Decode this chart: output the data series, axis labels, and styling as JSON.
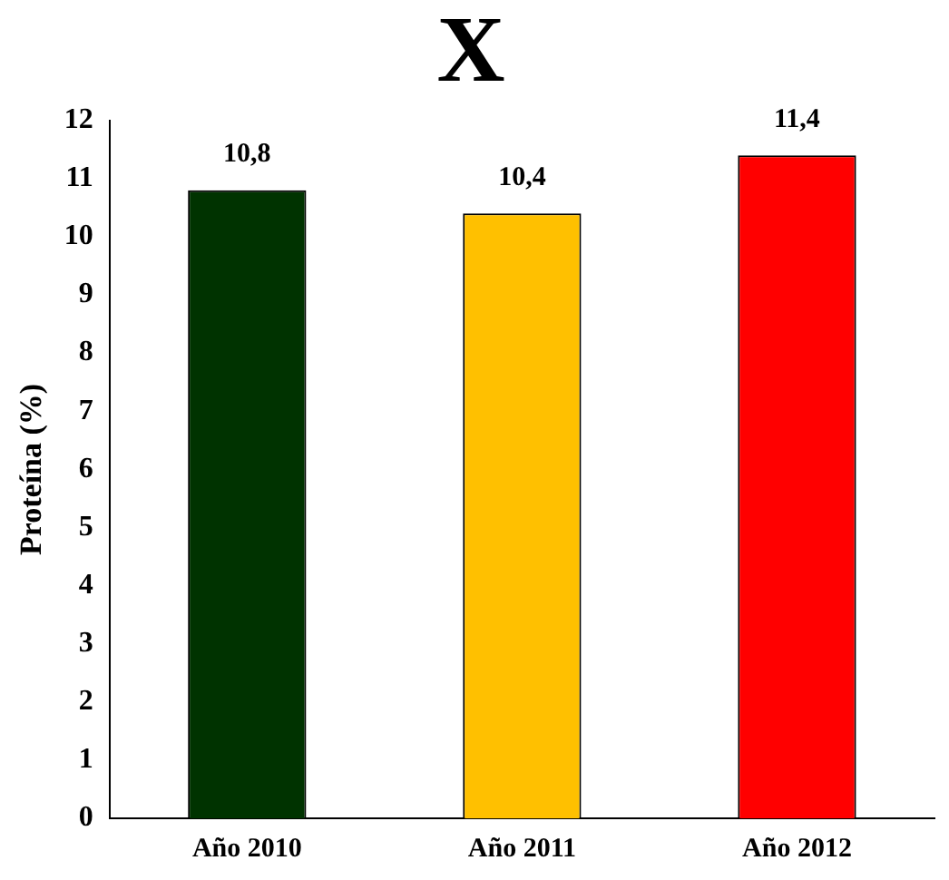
{
  "chart_data": {
    "type": "bar",
    "title": "X",
    "ylabel": "Proteína (%)",
    "categories": [
      "Año 2010",
      "Año 2011",
      "Año 2012"
    ],
    "values": [
      10.8,
      10.4,
      11.4
    ],
    "colors": [
      "#003300",
      "#ffc000",
      "#ff0000"
    ],
    "ylim": [
      0,
      12
    ],
    "yticks": [
      0,
      1,
      2,
      3,
      4,
      5,
      6,
      7,
      8,
      9,
      10,
      11,
      12
    ],
    "value_labels": [
      "10,8",
      "10,4",
      "11,4"
    ],
    "grid": false,
    "legend": false
  }
}
